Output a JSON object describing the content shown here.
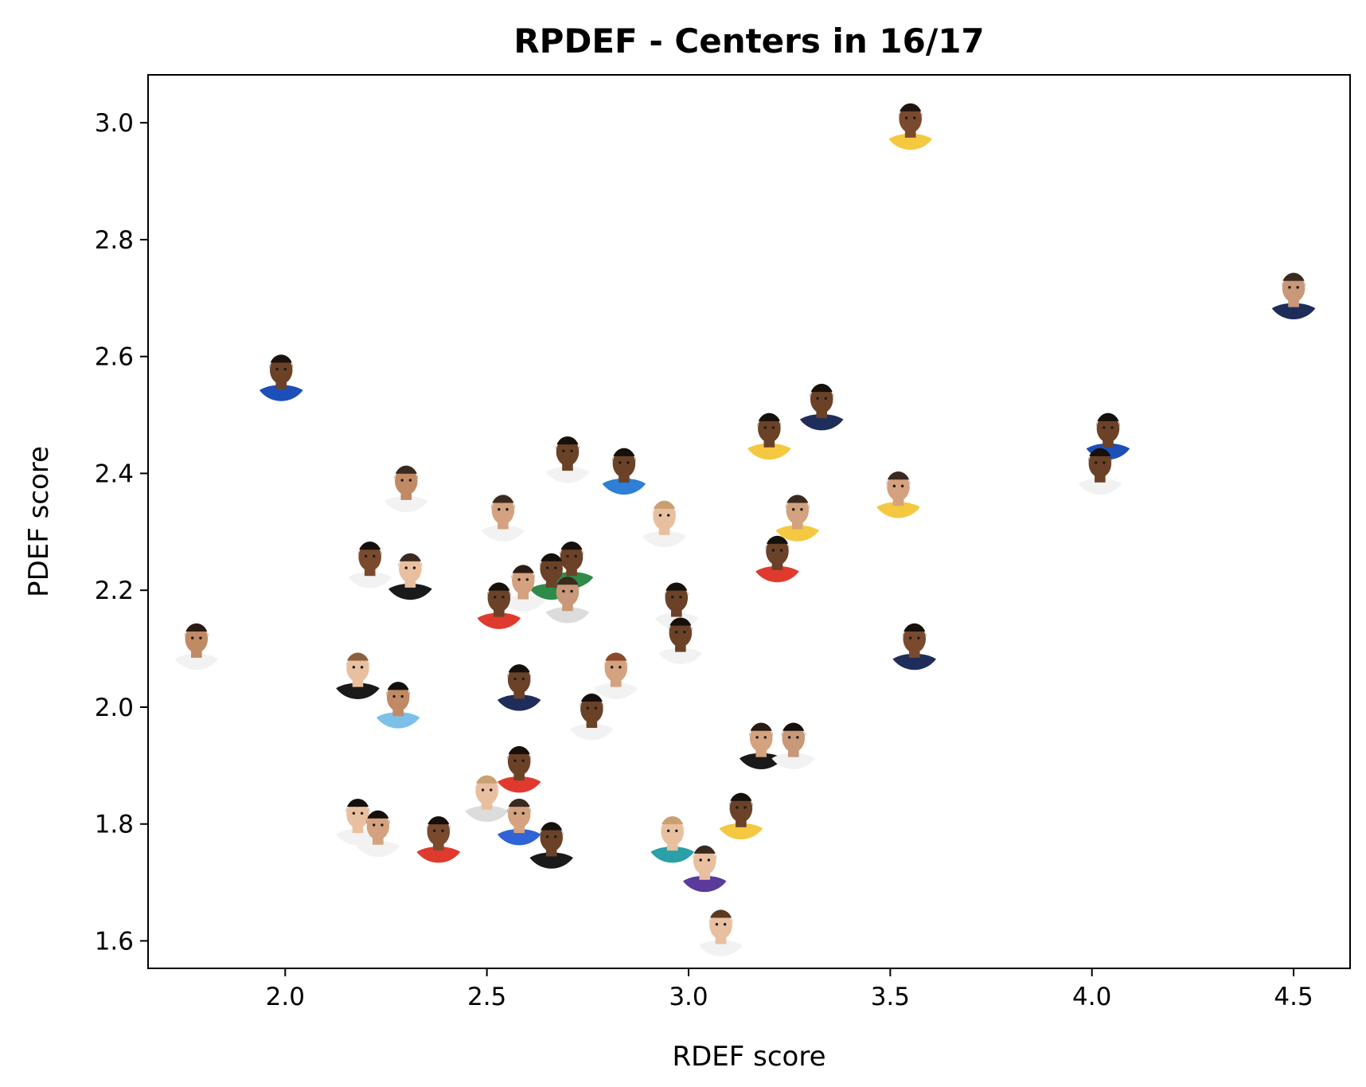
{
  "chart_data": {
    "type": "scatter",
    "title": "RPDEF - Centers in 16/17",
    "xlabel": "RDEF score",
    "ylabel": "PDEF score",
    "xlim": [
      1.66,
      4.64
    ],
    "ylim": [
      1.553,
      3.082
    ],
    "xticks": [
      "2.0",
      "2.5",
      "3.0",
      "3.5",
      "4.0",
      "4.5"
    ],
    "yticks": [
      "1.6",
      "1.8",
      "2.0",
      "2.2",
      "2.4",
      "2.6",
      "2.8",
      "3.0"
    ],
    "grid": false,
    "legend": "none",
    "marker": "player headshot image",
    "points": [
      {
        "x": 3.55,
        "y": 3.0,
        "skin": "#7a4a2e",
        "hair": "#1c1410",
        "jersey": "#f5c842"
      },
      {
        "x": 4.5,
        "y": 2.71,
        "skin": "#c89878",
        "hair": "#3a2a20",
        "jersey": "#1f2d5a"
      },
      {
        "x": 1.99,
        "y": 2.57,
        "skin": "#6b4228",
        "hair": "#1a120c",
        "jersey": "#1d4fb8"
      },
      {
        "x": 4.04,
        "y": 2.47,
        "skin": "#6b4228",
        "hair": "#15100c",
        "jersey": "#1d4fb8"
      },
      {
        "x": 4.02,
        "y": 2.41,
        "skin": "#6b4228",
        "hair": "#15100c",
        "jersey": "#f2f2f2"
      },
      {
        "x": 3.33,
        "y": 2.52,
        "skin": "#6b4228",
        "hair": "#15100c",
        "jersey": "#1f2d5a"
      },
      {
        "x": 3.2,
        "y": 2.47,
        "skin": "#6b4228",
        "hair": "#15100c",
        "jersey": "#f5c842"
      },
      {
        "x": 3.27,
        "y": 2.33,
        "skin": "#d4a27e",
        "hair": "#3a2a20",
        "jersey": "#f5c842"
      },
      {
        "x": 3.22,
        "y": 2.26,
        "skin": "#6b4228",
        "hair": "#15100c",
        "jersey": "#e03a2e"
      },
      {
        "x": 3.52,
        "y": 2.37,
        "skin": "#d4a27e",
        "hair": "#3a2a20",
        "jersey": "#f5c842"
      },
      {
        "x": 3.56,
        "y": 2.11,
        "skin": "#7a4a2e",
        "hair": "#15100c",
        "jersey": "#1f2d5a"
      },
      {
        "x": 2.7,
        "y": 2.43,
        "skin": "#6b4228",
        "hair": "#15100c",
        "jersey": "#f2f2f2"
      },
      {
        "x": 2.84,
        "y": 2.41,
        "skin": "#6b4228",
        "hair": "#15100c",
        "jersey": "#2f7fd6"
      },
      {
        "x": 2.94,
        "y": 2.32,
        "skin": "#e8c0a0",
        "hair": "#c9a070",
        "jersey": "#f2f2f2"
      },
      {
        "x": 2.3,
        "y": 2.38,
        "skin": "#c08a64",
        "hair": "#3a2a20",
        "jersey": "#f2f2f2"
      },
      {
        "x": 2.54,
        "y": 2.33,
        "skin": "#d4a27e",
        "hair": "#3a2a20",
        "jersey": "#f2f2f2"
      },
      {
        "x": 2.71,
        "y": 2.25,
        "skin": "#6b4228",
        "hair": "#15100c",
        "jersey": "#2e8b4a"
      },
      {
        "x": 2.66,
        "y": 2.23,
        "skin": "#6b4228",
        "hair": "#15100c",
        "jersey": "#2e8b4a"
      },
      {
        "x": 2.59,
        "y": 2.21,
        "skin": "#d4a27e",
        "hair": "#2a1c14",
        "jersey": "#f2f2f2"
      },
      {
        "x": 2.7,
        "y": 2.19,
        "skin": "#c89878",
        "hair": "#3a2a20",
        "jersey": "#dcdcdc"
      },
      {
        "x": 2.53,
        "y": 2.18,
        "skin": "#6b4228",
        "hair": "#15100c",
        "jersey": "#e03a2e"
      },
      {
        "x": 2.21,
        "y": 2.25,
        "skin": "#7a4a2e",
        "hair": "#15100c",
        "jersey": "#f2f2f2"
      },
      {
        "x": 2.31,
        "y": 2.23,
        "skin": "#e8c0a0",
        "hair": "#3a2a20",
        "jersey": "#1a1a1a"
      },
      {
        "x": 2.97,
        "y": 2.18,
        "skin": "#6b4228",
        "hair": "#15100c",
        "jersey": "#f2f2f2"
      },
      {
        "x": 2.98,
        "y": 2.12,
        "skin": "#6b4228",
        "hair": "#15100c",
        "jersey": "#f2f2f2"
      },
      {
        "x": 1.78,
        "y": 2.11,
        "skin": "#c08a64",
        "hair": "#2a1c14",
        "jersey": "#f2f2f2"
      },
      {
        "x": 2.18,
        "y": 2.06,
        "skin": "#e8c0a0",
        "hair": "#8a6040",
        "jersey": "#1a1a1a"
      },
      {
        "x": 2.28,
        "y": 2.01,
        "skin": "#c08a64",
        "hair": "#15100c",
        "jersey": "#7cc0ea"
      },
      {
        "x": 2.58,
        "y": 2.04,
        "skin": "#6b4228",
        "hair": "#15100c",
        "jersey": "#1f2d5a"
      },
      {
        "x": 2.82,
        "y": 2.06,
        "skin": "#d4a27e",
        "hair": "#8a4a2a",
        "jersey": "#f2f2f2"
      },
      {
        "x": 2.76,
        "y": 1.99,
        "skin": "#6b4228",
        "hair": "#15100c",
        "jersey": "#f2f2f2"
      },
      {
        "x": 3.18,
        "y": 1.94,
        "skin": "#d4a27e",
        "hair": "#2a1c14",
        "jersey": "#1a1a1a"
      },
      {
        "x": 3.26,
        "y": 1.94,
        "skin": "#c89878",
        "hair": "#15100c",
        "jersey": "#f2f2f2"
      },
      {
        "x": 2.58,
        "y": 1.9,
        "skin": "#6b4228",
        "hair": "#15100c",
        "jersey": "#e03a2e"
      },
      {
        "x": 2.5,
        "y": 1.85,
        "skin": "#e8c0a0",
        "hair": "#c9a070",
        "jersey": "#dcdcdc"
      },
      {
        "x": 2.58,
        "y": 1.81,
        "skin": "#d4a27e",
        "hair": "#3a2a20",
        "jersey": "#2f63d6"
      },
      {
        "x": 2.18,
        "y": 1.81,
        "skin": "#e8c0a0",
        "hair": "#15100c",
        "jersey": "#f2f2f2"
      },
      {
        "x": 2.23,
        "y": 1.79,
        "skin": "#d4a27e",
        "hair": "#15100c",
        "jersey": "#f2f2f2"
      },
      {
        "x": 2.38,
        "y": 1.78,
        "skin": "#7a4a2e",
        "hair": "#15100c",
        "jersey": "#e03a2e"
      },
      {
        "x": 2.66,
        "y": 1.77,
        "skin": "#6b4228",
        "hair": "#15100c",
        "jersey": "#1a1a1a"
      },
      {
        "x": 2.96,
        "y": 1.78,
        "skin": "#e8c0a0",
        "hair": "#c9a070",
        "jersey": "#2aa0a8"
      },
      {
        "x": 3.13,
        "y": 1.82,
        "skin": "#6b4228",
        "hair": "#15100c",
        "jersey": "#f5c842"
      },
      {
        "x": 3.04,
        "y": 1.73,
        "skin": "#e8c0a0",
        "hair": "#3a2a20",
        "jersey": "#5a3a9a"
      },
      {
        "x": 3.08,
        "y": 1.62,
        "skin": "#e8c0a0",
        "hair": "#5a3a20",
        "jersey": "#f2f2f2"
      }
    ]
  }
}
